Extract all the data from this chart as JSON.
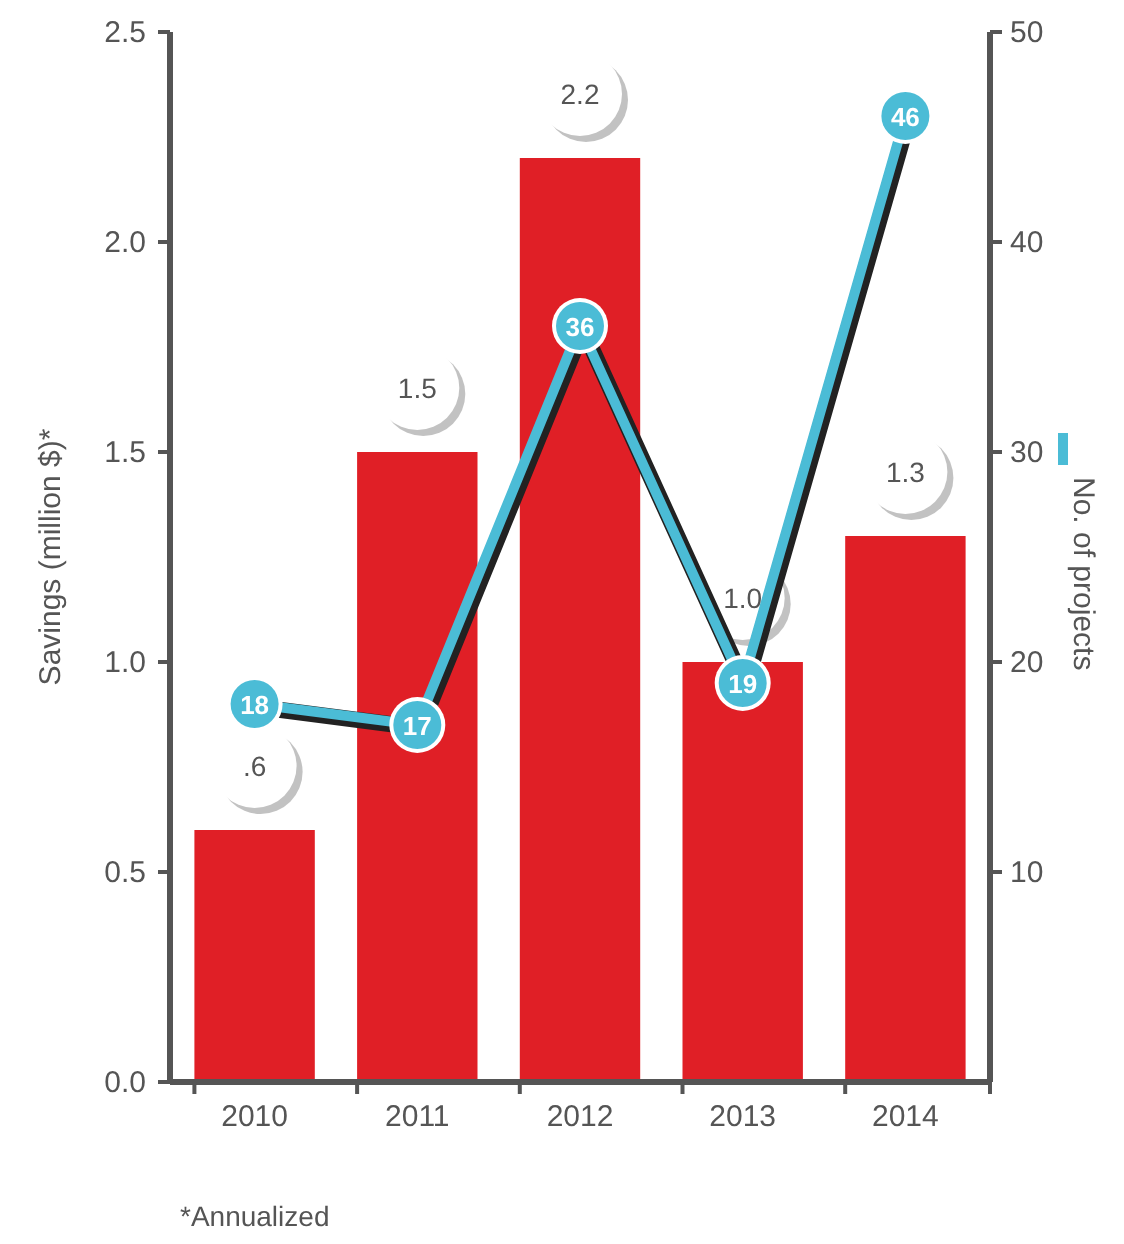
{
  "chart_data": {
    "type": "bar",
    "ylabel": "Savings (million $)*",
    "categories": [
      "2010",
      "2011",
      "2012",
      "2013",
      "2014"
    ],
    "series": [
      {
        "color": "#e01f26",
        "values": [
          0.6,
          1.5,
          2.2,
          1.0,
          1.3
        ],
        "value_labels": [
          ".6",
          "1.5",
          "2.2",
          "1.0",
          "1.3"
        ]
      },
      {
        "type": "line",
        "axis": "y2",
        "name": "No. of projects",
        "color": "#4bbcd6",
        "values": [
          18,
          17,
          36,
          19,
          46
        ],
        "value_labels": [
          "18",
          "17",
          "36",
          "19",
          "46"
        ]
      }
    ],
    "ylim": [
      0,
      2.5
    ],
    "yticks": [
      {
        "value": 0,
        "label": "0.0"
      },
      {
        "value": 0.5,
        "label": "0.5"
      },
      {
        "value": 1,
        "label": "1.0"
      },
      {
        "value": 1.5,
        "label": "1.5"
      },
      {
        "value": 2,
        "label": "2.0"
      },
      {
        "value": 2.5,
        "label": "2.5"
      }
    ],
    "y2lim": [
      0,
      50
    ],
    "y2ticks": [
      10,
      20,
      30,
      40,
      50
    ],
    "marker": "circle",
    "legend": "right",
    "annotations": [
      "*Annualized"
    ]
  }
}
